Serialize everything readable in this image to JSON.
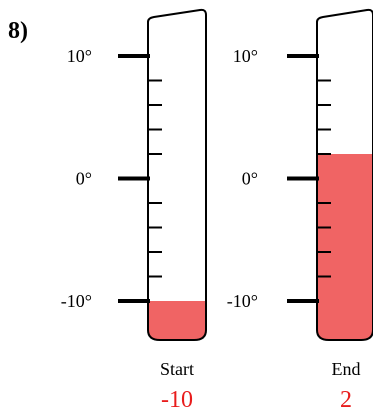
{
  "problem_number": "8)",
  "scale": {
    "min": -10,
    "max": 10,
    "major_step": 10,
    "minor_step": 2,
    "labels": [
      "10°",
      "0°",
      "-10°"
    ]
  },
  "fill_color": "#f06464",
  "thermometers": [
    {
      "caption": "Start",
      "value_text": "-10",
      "value": -10
    },
    {
      "caption": "End",
      "value_text": "2",
      "value": 2
    }
  ],
  "value_color": "#e81c1c"
}
